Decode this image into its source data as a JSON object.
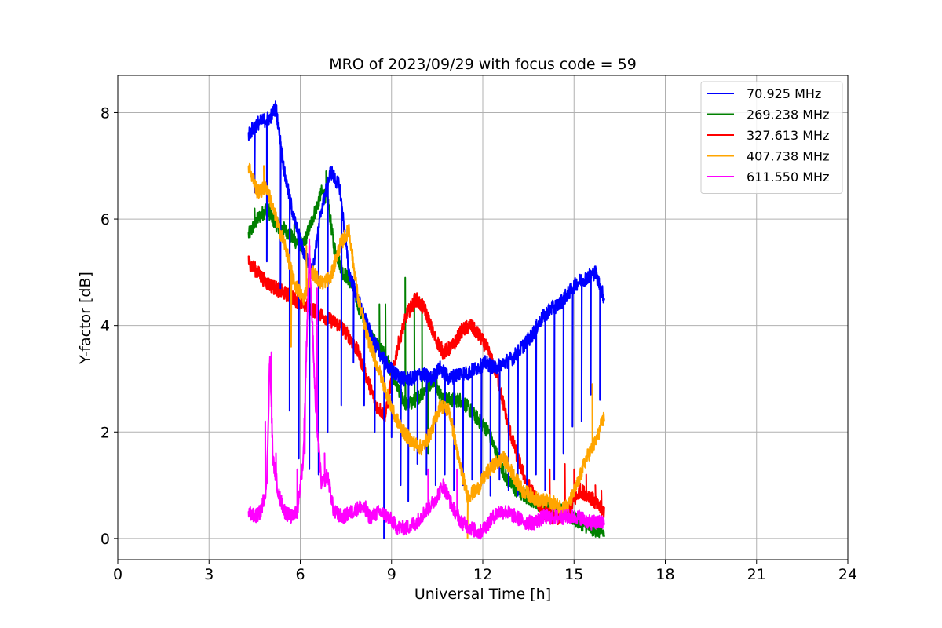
{
  "chart_data": {
    "type": "line",
    "title": "MRO of 2023/09/29 with focus code = 59",
    "xlabel": "Universal Time [h]",
    "ylabel": "Y-factor [dB]",
    "xlim": [
      0,
      24
    ],
    "ylim": [
      -0.4,
      8.7
    ],
    "xticks": [
      0,
      3,
      6,
      9,
      12,
      15,
      18,
      21,
      24
    ],
    "yticks": [
      0,
      2,
      4,
      6,
      8
    ],
    "grid": true,
    "legend_position": "top-right",
    "series": [
      {
        "name": " 70.925 MHz",
        "color": "#0000ff",
        "x": [
          4.3,
          4.6,
          5.0,
          5.2,
          5.5,
          5.8,
          6.1,
          6.4,
          6.7,
          7.0,
          7.3,
          7.6,
          7.9,
          8.2,
          8.5,
          8.8,
          9.1,
          9.4,
          9.7,
          10.0,
          10.3,
          10.6,
          10.9,
          11.2,
          11.5,
          11.8,
          12.1,
          12.4,
          12.7,
          13.0,
          13.3,
          13.6,
          13.9,
          14.2,
          14.5,
          14.8,
          15.1,
          15.4,
          15.7,
          16.0
        ],
        "y": [
          7.6,
          7.8,
          7.9,
          8.1,
          6.8,
          6.0,
          5.4,
          5.0,
          6.2,
          6.9,
          6.6,
          5.0,
          4.5,
          4.0,
          3.6,
          3.3,
          3.1,
          3.0,
          3.0,
          3.1,
          3.0,
          3.2,
          3.0,
          3.1,
          3.1,
          3.2,
          3.3,
          3.2,
          3.3,
          3.4,
          3.6,
          3.8,
          4.1,
          4.3,
          4.4,
          4.6,
          4.8,
          4.9,
          5.0,
          4.5
        ],
        "dips": [
          [
            4.5,
            6.5
          ],
          [
            4.9,
            5.2
          ],
          [
            5.35,
            4.7
          ],
          [
            5.65,
            2.4
          ],
          [
            5.95,
            1.5
          ],
          [
            6.3,
            1.3
          ],
          [
            6.6,
            1.2
          ],
          [
            6.9,
            2.0
          ],
          [
            7.35,
            2.5
          ],
          [
            7.75,
            3.3
          ],
          [
            8.1,
            2.5
          ],
          [
            8.45,
            2.0
          ],
          [
            8.75,
            0.0
          ],
          [
            9.0,
            1.9
          ],
          [
            9.3,
            1.0
          ],
          [
            9.55,
            0.7
          ],
          [
            9.85,
            1.4
          ],
          [
            10.15,
            1.2
          ],
          [
            10.45,
            1.0
          ],
          [
            10.75,
            1.2
          ],
          [
            11.05,
            0.9
          ],
          [
            11.35,
            1.0
          ],
          [
            11.65,
            1.1
          ],
          [
            11.95,
            1.0
          ],
          [
            12.25,
            0.8
          ],
          [
            12.55,
            1.1
          ],
          [
            12.85,
            0.9
          ],
          [
            13.15,
            0.8
          ],
          [
            13.45,
            1.0
          ],
          [
            13.75,
            1.2
          ],
          [
            14.05,
            0.9
          ],
          [
            14.35,
            1.1
          ],
          [
            14.65,
            1.6
          ],
          [
            14.95,
            2.1
          ],
          [
            15.25,
            2.2
          ],
          [
            15.55,
            2.7
          ],
          [
            15.85,
            2.6
          ]
        ]
      },
      {
        "name": "269.238 MHz",
        "color": "#008000",
        "x": [
          4.3,
          4.6,
          4.9,
          5.2,
          5.5,
          5.8,
          6.1,
          6.4,
          6.7,
          6.9,
          7.1,
          7.4,
          7.7,
          8.0,
          8.3,
          8.6,
          8.9,
          9.2,
          9.5,
          9.8,
          10.1,
          10.4,
          10.7,
          11.0,
          11.3,
          11.6,
          11.9,
          12.2,
          12.5,
          12.8,
          13.1,
          13.4,
          13.7,
          14.0,
          14.3,
          14.6,
          14.9,
          15.2,
          15.5,
          15.8,
          16.0
        ],
        "y": [
          5.7,
          6.0,
          6.2,
          5.9,
          5.8,
          5.6,
          5.5,
          6.0,
          6.5,
          6.4,
          5.5,
          5.0,
          4.8,
          4.2,
          3.8,
          3.6,
          3.3,
          2.8,
          2.5,
          2.6,
          2.8,
          3.0,
          2.6,
          2.6,
          2.6,
          2.4,
          2.2,
          2.0,
          1.5,
          1.1,
          0.9,
          0.8,
          0.7,
          0.6,
          0.6,
          0.5,
          0.4,
          0.3,
          0.2,
          0.15,
          0.1
        ],
        "spikes": [
          [
            4.5,
            6.2
          ],
          [
            5.0,
            6.3
          ],
          [
            5.8,
            5.9
          ],
          [
            6.85,
            6.9
          ],
          [
            8.6,
            4.4
          ],
          [
            8.8,
            4.4
          ],
          [
            9.3,
            2.3
          ],
          [
            9.45,
            4.9
          ],
          [
            9.75,
            4.6
          ],
          [
            10.0,
            4.5
          ],
          [
            10.2,
            1.6
          ]
        ]
      },
      {
        "name": "327.613 MHz",
        "color": "#ff0000",
        "x": [
          4.3,
          4.6,
          4.9,
          5.2,
          5.5,
          5.8,
          6.1,
          6.4,
          6.7,
          7.0,
          7.3,
          7.6,
          7.9,
          8.2,
          8.5,
          8.8,
          9.0,
          9.2,
          9.5,
          9.8,
          10.1,
          10.4,
          10.7,
          11.0,
          11.3,
          11.6,
          11.9,
          12.2,
          12.5,
          12.8,
          13.1,
          13.4,
          13.7,
          14.0,
          14.3,
          14.6,
          14.9,
          15.2,
          15.5,
          15.8,
          16.0
        ],
        "y": [
          5.2,
          5.0,
          4.8,
          4.7,
          4.6,
          4.5,
          4.4,
          4.3,
          4.2,
          4.1,
          4.0,
          3.8,
          3.5,
          3.0,
          2.5,
          2.3,
          3.0,
          3.6,
          4.2,
          4.5,
          4.3,
          3.8,
          3.5,
          3.6,
          3.9,
          4.0,
          3.8,
          3.5,
          3.0,
          2.2,
          1.6,
          1.1,
          0.8,
          0.5,
          0.4,
          0.4,
          0.6,
          0.9,
          0.8,
          0.6,
          0.5
        ],
        "spikes": [
          [
            14.2,
            1.3
          ],
          [
            14.7,
            1.4
          ],
          [
            15.0,
            1.3
          ],
          [
            15.4,
            1.2
          ],
          [
            15.7,
            1.0
          ],
          [
            15.9,
            0.9
          ]
        ]
      },
      {
        "name": "407.738 MHz",
        "color": "#ffa500",
        "x": [
          4.3,
          4.6,
          4.9,
          5.2,
          5.5,
          5.8,
          6.1,
          6.4,
          6.7,
          7.0,
          7.3,
          7.6,
          7.9,
          8.2,
          8.5,
          8.8,
          9.1,
          9.4,
          9.7,
          10.0,
          10.3,
          10.6,
          10.9,
          11.2,
          11.5,
          11.8,
          12.1,
          12.4,
          12.7,
          13.0,
          13.3,
          13.6,
          13.9,
          14.2,
          14.5,
          14.8,
          15.1,
          15.4,
          15.7,
          16.0
        ],
        "y": [
          7.0,
          6.5,
          6.6,
          6.0,
          5.5,
          4.8,
          4.5,
          5.0,
          4.8,
          4.9,
          5.5,
          5.8,
          4.5,
          3.8,
          3.3,
          2.8,
          2.3,
          2.0,
          1.8,
          1.7,
          2.0,
          2.5,
          2.4,
          1.5,
          0.8,
          0.9,
          1.2,
          1.4,
          1.5,
          1.2,
          0.9,
          0.8,
          0.7,
          0.7,
          0.6,
          0.6,
          1.0,
          1.5,
          1.8,
          2.3
        ],
        "spikes": [
          [
            4.8,
            7.0
          ],
          [
            5.7,
            3.6
          ],
          [
            6.2,
            5.5
          ],
          [
            7.6,
            5.9
          ],
          [
            11.5,
            0.0
          ],
          [
            15.6,
            2.9
          ],
          [
            16.0,
            2.6
          ]
        ]
      },
      {
        "name": "611.550 MHz",
        "color": "#ff00ff",
        "x": [
          4.3,
          4.5,
          4.7,
          4.9,
          5.0,
          5.1,
          5.3,
          5.5,
          5.7,
          5.9,
          6.1,
          6.3,
          6.5,
          6.7,
          6.9,
          7.1,
          7.4,
          7.7,
          8.0,
          8.3,
          8.6,
          8.9,
          9.2,
          9.5,
          9.8,
          10.1,
          10.4,
          10.7,
          11.0,
          11.3,
          11.6,
          11.9,
          12.2,
          12.5,
          12.8,
          13.1,
          13.4,
          13.7,
          14.0,
          14.3,
          14.6,
          14.9,
          15.2,
          15.5,
          15.8,
          16.0
        ],
        "y": [
          0.5,
          0.4,
          0.5,
          1.0,
          3.5,
          1.5,
          0.8,
          0.5,
          0.4,
          0.5,
          1.5,
          5.5,
          2.5,
          1.0,
          1.2,
          0.5,
          0.4,
          0.5,
          0.6,
          0.4,
          0.5,
          0.4,
          0.2,
          0.2,
          0.3,
          0.5,
          0.7,
          1.0,
          0.6,
          0.3,
          0.2,
          0.1,
          0.3,
          0.5,
          0.5,
          0.4,
          0.3,
          0.3,
          0.4,
          0.4,
          0.4,
          0.4,
          0.4,
          0.3,
          0.3,
          0.3
        ],
        "spikes": [
          [
            4.85,
            2.2
          ],
          [
            5.05,
            3.5
          ],
          [
            5.2,
            1.6
          ],
          [
            5.9,
            1.3
          ],
          [
            6.15,
            1.6
          ],
          [
            6.3,
            5.4
          ],
          [
            6.55,
            4.7
          ],
          [
            6.8,
            1.6
          ],
          [
            8.15,
            0.7
          ],
          [
            10.2,
            1.3
          ],
          [
            11.15,
            1.3
          ]
        ]
      }
    ]
  }
}
